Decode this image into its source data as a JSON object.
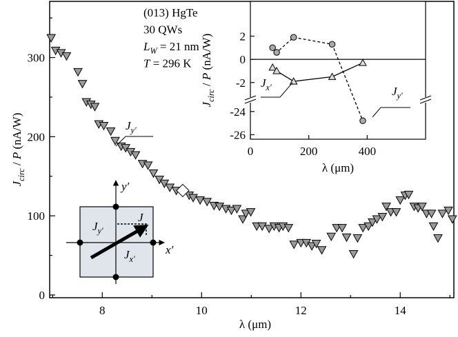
{
  "chart_data": [
    {
      "type": "scatter",
      "annotation": [
        [
          {
            "text": "(013) HgTe"
          }
        ],
        [
          {
            "text": "30 QWs"
          }
        ],
        [
          {
            "text": "L",
            "italic": true
          },
          {
            "text": "W",
            "italic": true,
            "sub": true
          },
          {
            "text": " = 21 nm"
          }
        ],
        [
          {
            "text": "T",
            "italic": true
          },
          {
            "text": " = 296 K"
          }
        ]
      ],
      "xlabel": [
        {
          "text": "λ (μm)"
        }
      ],
      "ylabel": [
        {
          "text": "J",
          "italic": true
        },
        {
          "text": "circ",
          "italic": true,
          "sub": true
        },
        {
          "text": " / "
        },
        {
          "text": "P",
          "italic": true
        },
        {
          "text": " (nA/W)"
        }
      ],
      "xlim": [
        6.94,
        15.08
      ],
      "ylim": [
        -3.5,
        371
      ],
      "xticks": [
        8,
        10,
        12,
        14
      ],
      "yticks": [
        0,
        100,
        200,
        300
      ],
      "xminor": [
        7,
        9,
        11,
        13,
        15
      ],
      "yminor": [
        50,
        150,
        250,
        350
      ],
      "series": [
        {
          "label": [
            {
              "text": "J",
              "italic": true
            },
            {
              "text": "y′",
              "italic": true,
              "sub": true
            }
          ],
          "marker": "triangle-down",
          "color": "#9a9a9a",
          "x": [
            6.97,
            7.06,
            7.17,
            7.28,
            7.51,
            7.6,
            7.68,
            7.77,
            7.85,
            7.93,
            8.03,
            8.17,
            8.26,
            8.38,
            8.47,
            8.57,
            8.67,
            8.81,
            8.92,
            9.03,
            9.15,
            9.25,
            9.36,
            9.49,
            9.75,
            9.83,
            9.97,
            10.11,
            10.25,
            10.36,
            10.49,
            10.6,
            10.71,
            10.83,
            10.89,
            10.99,
            11.11,
            11.22,
            11.36,
            11.46,
            11.56,
            11.64,
            11.75,
            11.86,
            12.0,
            12.11,
            12.22,
            12.31,
            12.42,
            12.61,
            12.72,
            12.83,
            12.92,
            13.06,
            13.14,
            13.25,
            13.36,
            13.44,
            13.53,
            13.64,
            13.72,
            13.81,
            13.92,
            14.0,
            14.1,
            14.17,
            14.28,
            14.36,
            14.44,
            14.53,
            14.63,
            14.67,
            14.76,
            14.85,
            14.97,
            15.05
          ],
          "values": [
            325,
            309,
            306,
            302,
            282,
            267,
            244,
            241,
            238,
            216,
            214,
            207,
            195,
            188,
            186,
            181,
            177,
            166,
            164,
            154,
            146,
            141,
            136,
            132,
            126,
            123,
            120,
            118,
            113,
            112,
            109,
            107,
            109,
            96,
            103,
            105,
            87,
            87,
            84,
            87,
            85,
            87,
            85,
            64,
            66,
            66,
            62,
            65,
            57,
            74,
            85,
            85,
            73,
            52,
            72,
            85,
            87,
            92,
            96,
            99,
            112,
            105,
            105,
            120,
            126,
            127,
            112,
            110,
            112,
            103,
            103,
            87,
            72,
            103,
            107,
            96
          ]
        },
        {
          "marker": "diamond",
          "color": "#ffffff",
          "x": [
            9.62
          ],
          "values": [
            132
          ]
        }
      ]
    },
    {
      "type": "line",
      "xlabel": [
        {
          "text": "λ (μm)"
        }
      ],
      "ylabel": [
        {
          "text": "J",
          "italic": true
        },
        {
          "text": "circ",
          "italic": true,
          "sub": true
        },
        {
          "text": " / "
        },
        {
          "text": "P",
          "italic": true
        },
        {
          "text": " (nA/W)"
        }
      ],
      "xlim": [
        0,
        600
      ],
      "ylim": [
        -26.4,
        5
      ],
      "y_break": [
        -23,
        -3.5
      ],
      "xticks": [
        0,
        200,
        400
      ],
      "yticks": [
        2,
        0,
        -2,
        -24,
        -26
      ],
      "zero_line": true,
      "series": [
        {
          "label": [
            {
              "text": "J",
              "italic": true
            },
            {
              "text": "y′",
              "italic": true,
              "sub": true
            }
          ],
          "marker": "circle",
          "color": "#aaaaaa",
          "dash": true,
          "x": [
            76,
            90,
            148,
            280,
            385
          ],
          "values": [
            1.0,
            0.6,
            1.9,
            1.3,
            -24.8
          ]
        },
        {
          "label": [
            {
              "text": "J",
              "italic": true
            },
            {
              "text": "x′",
              "italic": true,
              "sub": true
            }
          ],
          "marker": "triangle-up",
          "color": "#dddddd",
          "dash": false,
          "x": [
            76,
            90,
            148,
            280,
            385
          ],
          "values": [
            -0.7,
            -1.0,
            -1.9,
            -1.5,
            -0.3
          ]
        }
      ]
    }
  ],
  "diagram": {
    "y_axis": [
      {
        "text": "y′",
        "italic": true
      }
    ],
    "x_axis": [
      {
        "text": "x′",
        "italic": true
      }
    ],
    "j": [
      {
        "text": "J",
        "italic": true
      }
    ],
    "jy": [
      {
        "text": "J",
        "italic": true
      },
      {
        "text": "y′",
        "italic": true,
        "sub": true
      }
    ],
    "jx": [
      {
        "text": "J",
        "italic": true
      },
      {
        "text": "x′",
        "italic": true,
        "sub": true
      }
    ]
  }
}
